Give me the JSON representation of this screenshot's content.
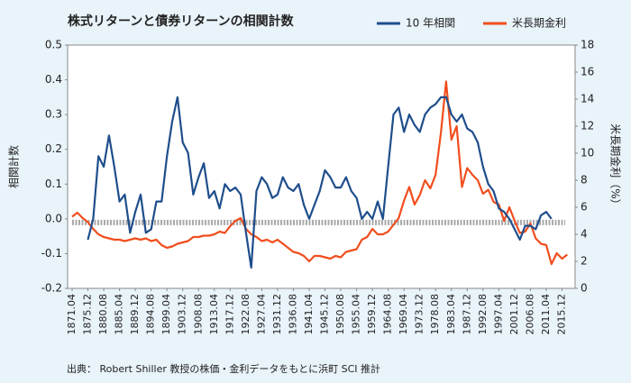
{
  "chart_data": {
    "type": "line",
    "title": "株式リターンと債券リターンの相関計数",
    "ylabel": "相関計数",
    "y2label": "米長期金利（%）",
    "source": "出典：  Robert Shiller 教授の株価・金利データをもとに浜町 SCI 推計",
    "categories": [
      "1871.04",
      null,
      null,
      "1875.12",
      null,
      null,
      "1880.08",
      null,
      null,
      "1885.04",
      null,
      null,
      "1889.12",
      null,
      null,
      "1894.08",
      null,
      null,
      "1899.04",
      null,
      null,
      "1903.12",
      null,
      null,
      "1908.08",
      null,
      null,
      "1913.04",
      null,
      null,
      "1917.12",
      null,
      null,
      "1922.08",
      null,
      null,
      "1927.04",
      null,
      null,
      "1931.12",
      null,
      null,
      "1936.08",
      null,
      null,
      "1941.04",
      null,
      null,
      "1945.12",
      null,
      null,
      "1950.08",
      null,
      null,
      "1955.04",
      null,
      null,
      "1959.12",
      null,
      null,
      "1964.08",
      null,
      null,
      "1969.04",
      null,
      null,
      "1973.12",
      null,
      null,
      "1978.08",
      null,
      null,
      "1983.04",
      null,
      null,
      "1987.12",
      null,
      null,
      "1992.08",
      null,
      null,
      "1997.04",
      null,
      null,
      "2001.12",
      null,
      null,
      "2006.08",
      null,
      null,
      "2011.04",
      null,
      null,
      "2015.12",
      null
    ],
    "series": [
      {
        "name": "10 年相関",
        "color": "#1f4e8c",
        "axis": "y",
        "values": [
          null,
          null,
          null,
          -0.06,
          0.0,
          0.18,
          0.15,
          0.24,
          0.15,
          0.05,
          0.07,
          -0.04,
          0.02,
          0.07,
          -0.04,
          -0.03,
          0.05,
          0.05,
          0.18,
          0.28,
          0.35,
          0.22,
          0.19,
          0.07,
          0.12,
          0.16,
          0.06,
          0.08,
          0.03,
          0.1,
          0.08,
          0.09,
          0.07,
          -0.04,
          -0.14,
          0.08,
          0.12,
          0.1,
          0.06,
          0.07,
          0.12,
          0.09,
          0.08,
          0.1,
          0.04,
          0.0,
          0.04,
          0.08,
          0.14,
          0.12,
          0.09,
          0.09,
          0.12,
          0.08,
          0.06,
          0.0,
          0.02,
          0.0,
          0.05,
          0.0,
          0.15,
          0.3,
          0.32,
          0.25,
          0.3,
          0.27,
          0.25,
          0.3,
          0.32,
          0.33,
          0.35,
          0.35,
          0.3,
          0.28,
          0.3,
          0.26,
          0.25,
          0.22,
          0.15,
          0.1,
          0.08,
          0.03,
          0.02,
          0.0,
          -0.03,
          -0.06,
          -0.02,
          -0.02,
          -0.03,
          0.01,
          0.02,
          0.0,
          null,
          null,
          null
        ]
      },
      {
        "name": "米長期金利",
        "color": "#f04e1e",
        "axis": "y2",
        "values": [
          5.3,
          5.6,
          5.2,
          4.9,
          4.4,
          4.0,
          3.8,
          3.7,
          3.6,
          3.6,
          3.5,
          3.6,
          3.7,
          3.6,
          3.7,
          3.5,
          3.6,
          3.2,
          3.0,
          3.1,
          3.3,
          3.4,
          3.5,
          3.8,
          3.8,
          3.9,
          3.9,
          4.0,
          4.2,
          4.1,
          4.6,
          5.0,
          5.2,
          4.4,
          4.0,
          3.8,
          3.5,
          3.6,
          3.4,
          3.6,
          3.3,
          3.0,
          2.7,
          2.6,
          2.4,
          2.0,
          2.4,
          2.4,
          2.3,
          2.2,
          2.4,
          2.3,
          2.7,
          2.8,
          2.9,
          3.6,
          3.8,
          4.4,
          4.0,
          4.0,
          4.2,
          4.7,
          5.2,
          6.5,
          7.5,
          6.2,
          6.9,
          8.0,
          7.4,
          8.4,
          11.5,
          15.3,
          11.0,
          12.0,
          7.5,
          8.9,
          8.4,
          8.0,
          7.0,
          7.3,
          6.4,
          6.2,
          5.0,
          6.0,
          5.0,
          4.1,
          4.2,
          4.8,
          3.7,
          3.3,
          3.2,
          1.8,
          2.6,
          2.2,
          2.5
        ]
      }
    ],
    "ylim": [
      -0.2,
      0.5
    ],
    "yticks": [
      -0.2,
      -0.1,
      {
        "value": 0,
        "label": "0.0"
      },
      0.1,
      0.2,
      0.3,
      0.4,
      0.5
    ],
    "y2lim": [
      0,
      18
    ],
    "y2ticks": [
      0,
      2,
      4,
      6,
      8,
      10,
      12,
      14,
      16,
      18
    ],
    "grid": false,
    "legend": "top-right"
  }
}
